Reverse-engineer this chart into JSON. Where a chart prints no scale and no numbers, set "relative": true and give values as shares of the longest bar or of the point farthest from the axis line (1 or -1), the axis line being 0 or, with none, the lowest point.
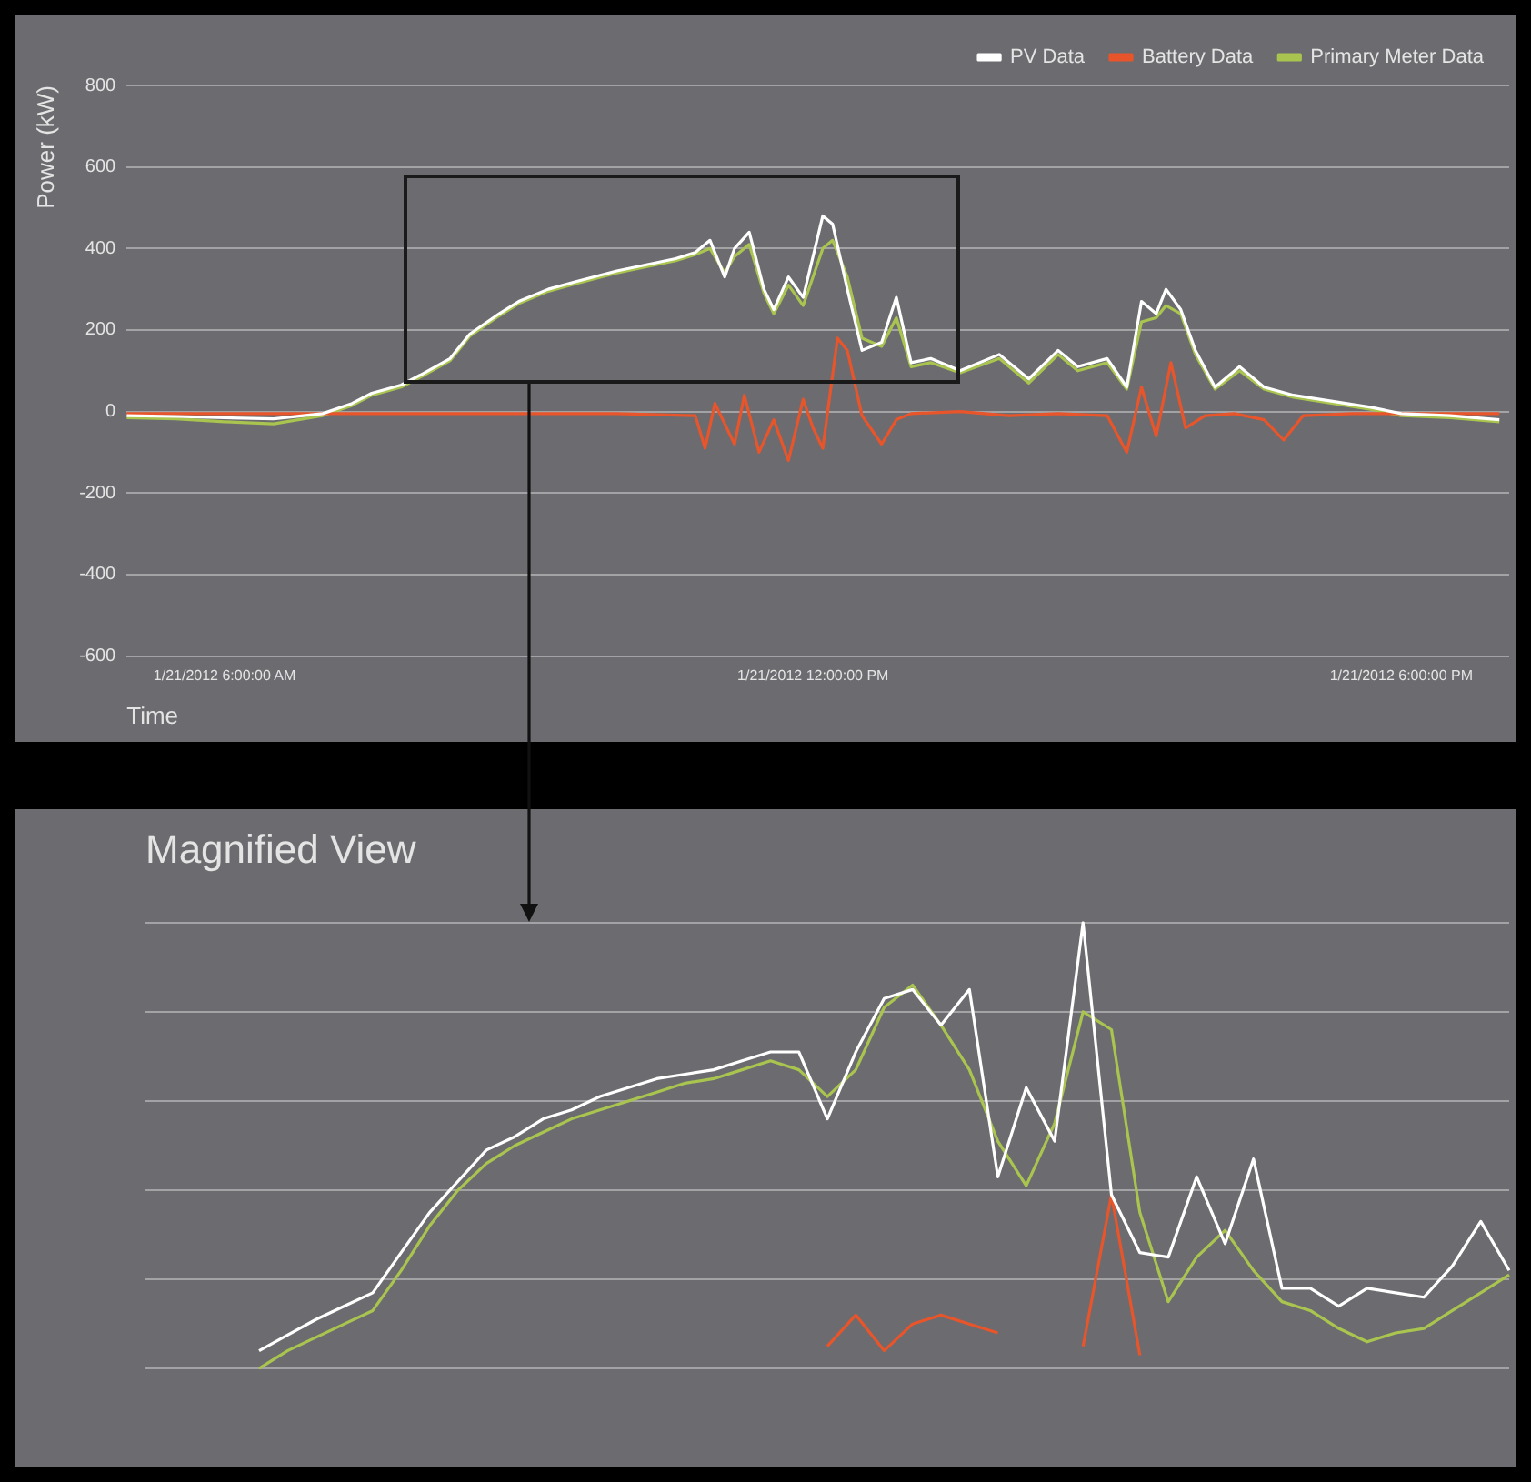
{
  "chart_data": [
    {
      "type": "line",
      "xlabel": "Time",
      "ylabel": "Power (kW)",
      "xlim": [
        "2012-01-21T05:00",
        "2012-01-21T19:06"
      ],
      "xticks": [
        {
          "value": "2012-01-21T06:00",
          "label": "1/21/2012 6:00:00 AM"
        },
        {
          "value": "2012-01-21T12:00",
          "label": "1/21/2012 12:00:00 PM"
        },
        {
          "value": "2012-01-21T18:00",
          "label": "1/21/2012 6:00:00 PM"
        }
      ],
      "ylim": [
        -600,
        800
      ],
      "yticks": [
        -600,
        -400,
        -200,
        0,
        200,
        400,
        600,
        800
      ],
      "grid": "y",
      "legend": "top right",
      "series": [
        {
          "name": "PV Data",
          "color": "#ffffff",
          "x": [
            "2012-01-21T05:00",
            "2012-01-21T05:30",
            "2012-01-21T06:00",
            "2012-01-21T06:30",
            "2012-01-21T07:00",
            "2012-01-21T07:18",
            "2012-01-21T07:30",
            "2012-01-21T07:48",
            "2012-01-21T08:00",
            "2012-01-21T08:18",
            "2012-01-21T08:30",
            "2012-01-21T08:48",
            "2012-01-21T09:00",
            "2012-01-21T09:18",
            "2012-01-21T09:36",
            "2012-01-21T10:00",
            "2012-01-21T10:18",
            "2012-01-21T10:36",
            "2012-01-21T10:48",
            "2012-01-21T10:57",
            "2012-01-21T11:06",
            "2012-01-21T11:12",
            "2012-01-21T11:21",
            "2012-01-21T11:30",
            "2012-01-21T11:36",
            "2012-01-21T11:45",
            "2012-01-21T11:54",
            "2012-01-21T12:06",
            "2012-01-21T12:12",
            "2012-01-21T12:21",
            "2012-01-21T12:30",
            "2012-01-21T12:42",
            "2012-01-21T12:51",
            "2012-01-21T13:00",
            "2012-01-21T13:12",
            "2012-01-21T13:30",
            "2012-01-21T13:54",
            "2012-01-21T14:12",
            "2012-01-21T14:30",
            "2012-01-21T14:42",
            "2012-01-21T15:00",
            "2012-01-21T15:12",
            "2012-01-21T15:21",
            "2012-01-21T15:30",
            "2012-01-21T15:36",
            "2012-01-21T15:45",
            "2012-01-21T15:54",
            "2012-01-21T16:06",
            "2012-01-21T16:21",
            "2012-01-21T16:36",
            "2012-01-21T16:54",
            "2012-01-21T17:18",
            "2012-01-21T17:42",
            "2012-01-21T18:00",
            "2012-01-21T18:30",
            "2012-01-21T19:00"
          ],
          "values": [
            -10,
            -12,
            -15,
            -18,
            -5,
            20,
            45,
            65,
            90,
            130,
            190,
            240,
            270,
            300,
            320,
            345,
            360,
            375,
            390,
            420,
            330,
            400,
            440,
            300,
            250,
            330,
            280,
            480,
            460,
            300,
            150,
            170,
            280,
            120,
            130,
            100,
            140,
            80,
            150,
            110,
            130,
            60,
            270,
            240,
            300,
            250,
            150,
            60,
            110,
            60,
            40,
            25,
            10,
            -5,
            -10,
            -20
          ]
        },
        {
          "name": "Battery Data",
          "color": "#e8552b",
          "x": [
            "2012-01-21T05:00",
            "2012-01-21T06:00",
            "2012-01-21T07:00",
            "2012-01-21T08:00",
            "2012-01-21T09:00",
            "2012-01-21T10:00",
            "2012-01-21T10:48",
            "2012-01-21T10:54",
            "2012-01-21T11:00",
            "2012-01-21T11:12",
            "2012-01-21T11:18",
            "2012-01-21T11:27",
            "2012-01-21T11:36",
            "2012-01-21T11:45",
            "2012-01-21T11:54",
            "2012-01-21T12:00",
            "2012-01-21T12:06",
            "2012-01-21T12:15",
            "2012-01-21T12:21",
            "2012-01-21T12:30",
            "2012-01-21T12:42",
            "2012-01-21T12:51",
            "2012-01-21T13:00",
            "2012-01-21T13:30",
            "2012-01-21T14:00",
            "2012-01-21T14:30",
            "2012-01-21T15:00",
            "2012-01-21T15:12",
            "2012-01-21T15:21",
            "2012-01-21T15:30",
            "2012-01-21T15:39",
            "2012-01-21T15:48",
            "2012-01-21T16:00",
            "2012-01-21T16:18",
            "2012-01-21T16:36",
            "2012-01-21T16:48",
            "2012-01-21T17:00",
            "2012-01-21T17:30",
            "2012-01-21T18:30",
            "2012-01-21T19:00"
          ],
          "values": [
            -5,
            -5,
            -5,
            -5,
            -5,
            -5,
            -10,
            -90,
            20,
            -80,
            40,
            -100,
            -20,
            -120,
            30,
            -40,
            -90,
            180,
            150,
            -10,
            -80,
            -20,
            -5,
            0,
            -10,
            -5,
            -10,
            -100,
            60,
            -60,
            120,
            -40,
            -10,
            -5,
            -20,
            -70,
            -10,
            -5,
            -5,
            -5
          ]
        },
        {
          "name": "Primary Meter Data",
          "color": "#a9c44f",
          "x": [
            "2012-01-21T05:00",
            "2012-01-21T05:30",
            "2012-01-21T06:00",
            "2012-01-21T06:30",
            "2012-01-21T07:00",
            "2012-01-21T07:18",
            "2012-01-21T07:30",
            "2012-01-21T07:48",
            "2012-01-21T08:00",
            "2012-01-21T08:18",
            "2012-01-21T08:30",
            "2012-01-21T08:48",
            "2012-01-21T09:00",
            "2012-01-21T09:18",
            "2012-01-21T09:36",
            "2012-01-21T10:00",
            "2012-01-21T10:18",
            "2012-01-21T10:36",
            "2012-01-21T10:48",
            "2012-01-21T10:57",
            "2012-01-21T11:06",
            "2012-01-21T11:12",
            "2012-01-21T11:21",
            "2012-01-21T11:30",
            "2012-01-21T11:36",
            "2012-01-21T11:45",
            "2012-01-21T11:54",
            "2012-01-21T12:06",
            "2012-01-21T12:12",
            "2012-01-21T12:21",
            "2012-01-21T12:30",
            "2012-01-21T12:42",
            "2012-01-21T12:51",
            "2012-01-21T13:00",
            "2012-01-21T13:12",
            "2012-01-21T13:30",
            "2012-01-21T13:54",
            "2012-01-21T14:12",
            "2012-01-21T14:30",
            "2012-01-21T14:42",
            "2012-01-21T15:00",
            "2012-01-21T15:12",
            "2012-01-21T15:21",
            "2012-01-21T15:30",
            "2012-01-21T15:36",
            "2012-01-21T15:45",
            "2012-01-21T15:54",
            "2012-01-21T16:06",
            "2012-01-21T16:21",
            "2012-01-21T16:36",
            "2012-01-21T16:54",
            "2012-01-21T17:18",
            "2012-01-21T17:42",
            "2012-01-21T18:00",
            "2012-01-21T18:30",
            "2012-01-21T19:00"
          ],
          "values": [
            -15,
            -18,
            -25,
            -30,
            -10,
            15,
            40,
            60,
            85,
            125,
            185,
            235,
            265,
            295,
            315,
            340,
            355,
            370,
            385,
            400,
            340,
            380,
            410,
            290,
            240,
            310,
            260,
            400,
            420,
            330,
            180,
            160,
            230,
            110,
            120,
            95,
            130,
            70,
            140,
            100,
            120,
            55,
            220,
            230,
            260,
            240,
            140,
            55,
            100,
            55,
            35,
            20,
            5,
            -10,
            -15,
            -25
          ]
        }
      ]
    },
    {
      "type": "line",
      "title": "Magnified View",
      "relative": true,
      "grid": "y",
      "categories": [
        null,
        null,
        null,
        null,
        null,
        null,
        null,
        null,
        null,
        null,
        null,
        null,
        null,
        null,
        null,
        null,
        null,
        null,
        null,
        null,
        null,
        null,
        null,
        null,
        null,
        null,
        null,
        null,
        null,
        null,
        null,
        null,
        null,
        null,
        null,
        null,
        null,
        null,
        null,
        null,
        null,
        null,
        null,
        null,
        null,
        null,
        null,
        null,
        null
      ],
      "series": [
        {
          "color": "#ffffff",
          "values": [
            null,
            null,
            null,
            null,
            0.04,
            0.075,
            0.11,
            0.14,
            0.17,
            0.26,
            0.35,
            0.42,
            0.49,
            0.52,
            0.56,
            0.58,
            0.61,
            0.63,
            0.65,
            0.66,
            0.67,
            0.69,
            0.71,
            0.71,
            0.56,
            0.71,
            0.83,
            0.85,
            0.77,
            0.85,
            0.43,
            0.63,
            0.51,
            1.0,
            0.39,
            0.26,
            0.25,
            0.43,
            0.28,
            0.47,
            0.18,
            0.18,
            0.14,
            0.18,
            0.17,
            0.16,
            0.23,
            0.33,
            0.22
          ]
        },
        {
          "color": "#e8552b",
          "values": [
            null,
            null,
            null,
            null,
            null,
            null,
            null,
            null,
            null,
            null,
            null,
            null,
            null,
            null,
            null,
            null,
            null,
            null,
            null,
            null,
            null,
            null,
            null,
            null,
            0.05,
            0.12,
            0.04,
            0.1,
            0.12,
            0.1,
            0.08,
            null,
            null,
            0.05,
            0.39,
            0.03,
            null,
            null,
            null,
            null,
            null,
            null,
            null,
            null,
            null,
            null,
            null,
            null,
            null
          ]
        },
        {
          "color": "#a9c44f",
          "values": [
            null,
            null,
            null,
            null,
            0,
            0.04,
            0.07,
            0.1,
            0.13,
            0.22,
            0.32,
            0.4,
            0.46,
            0.5,
            0.53,
            0.56,
            0.58,
            0.6,
            0.62,
            0.64,
            0.65,
            0.67,
            0.69,
            0.67,
            0.61,
            0.67,
            0.81,
            0.86,
            0.77,
            0.67,
            0.51,
            0.41,
            0.55,
            0.8,
            0.76,
            0.35,
            0.15,
            0.25,
            0.31,
            0.22,
            0.15,
            0.13,
            0.09,
            0.06,
            0.08,
            0.09,
            0.13,
            0.17,
            0.21
          ]
        }
      ]
    }
  ]
}
